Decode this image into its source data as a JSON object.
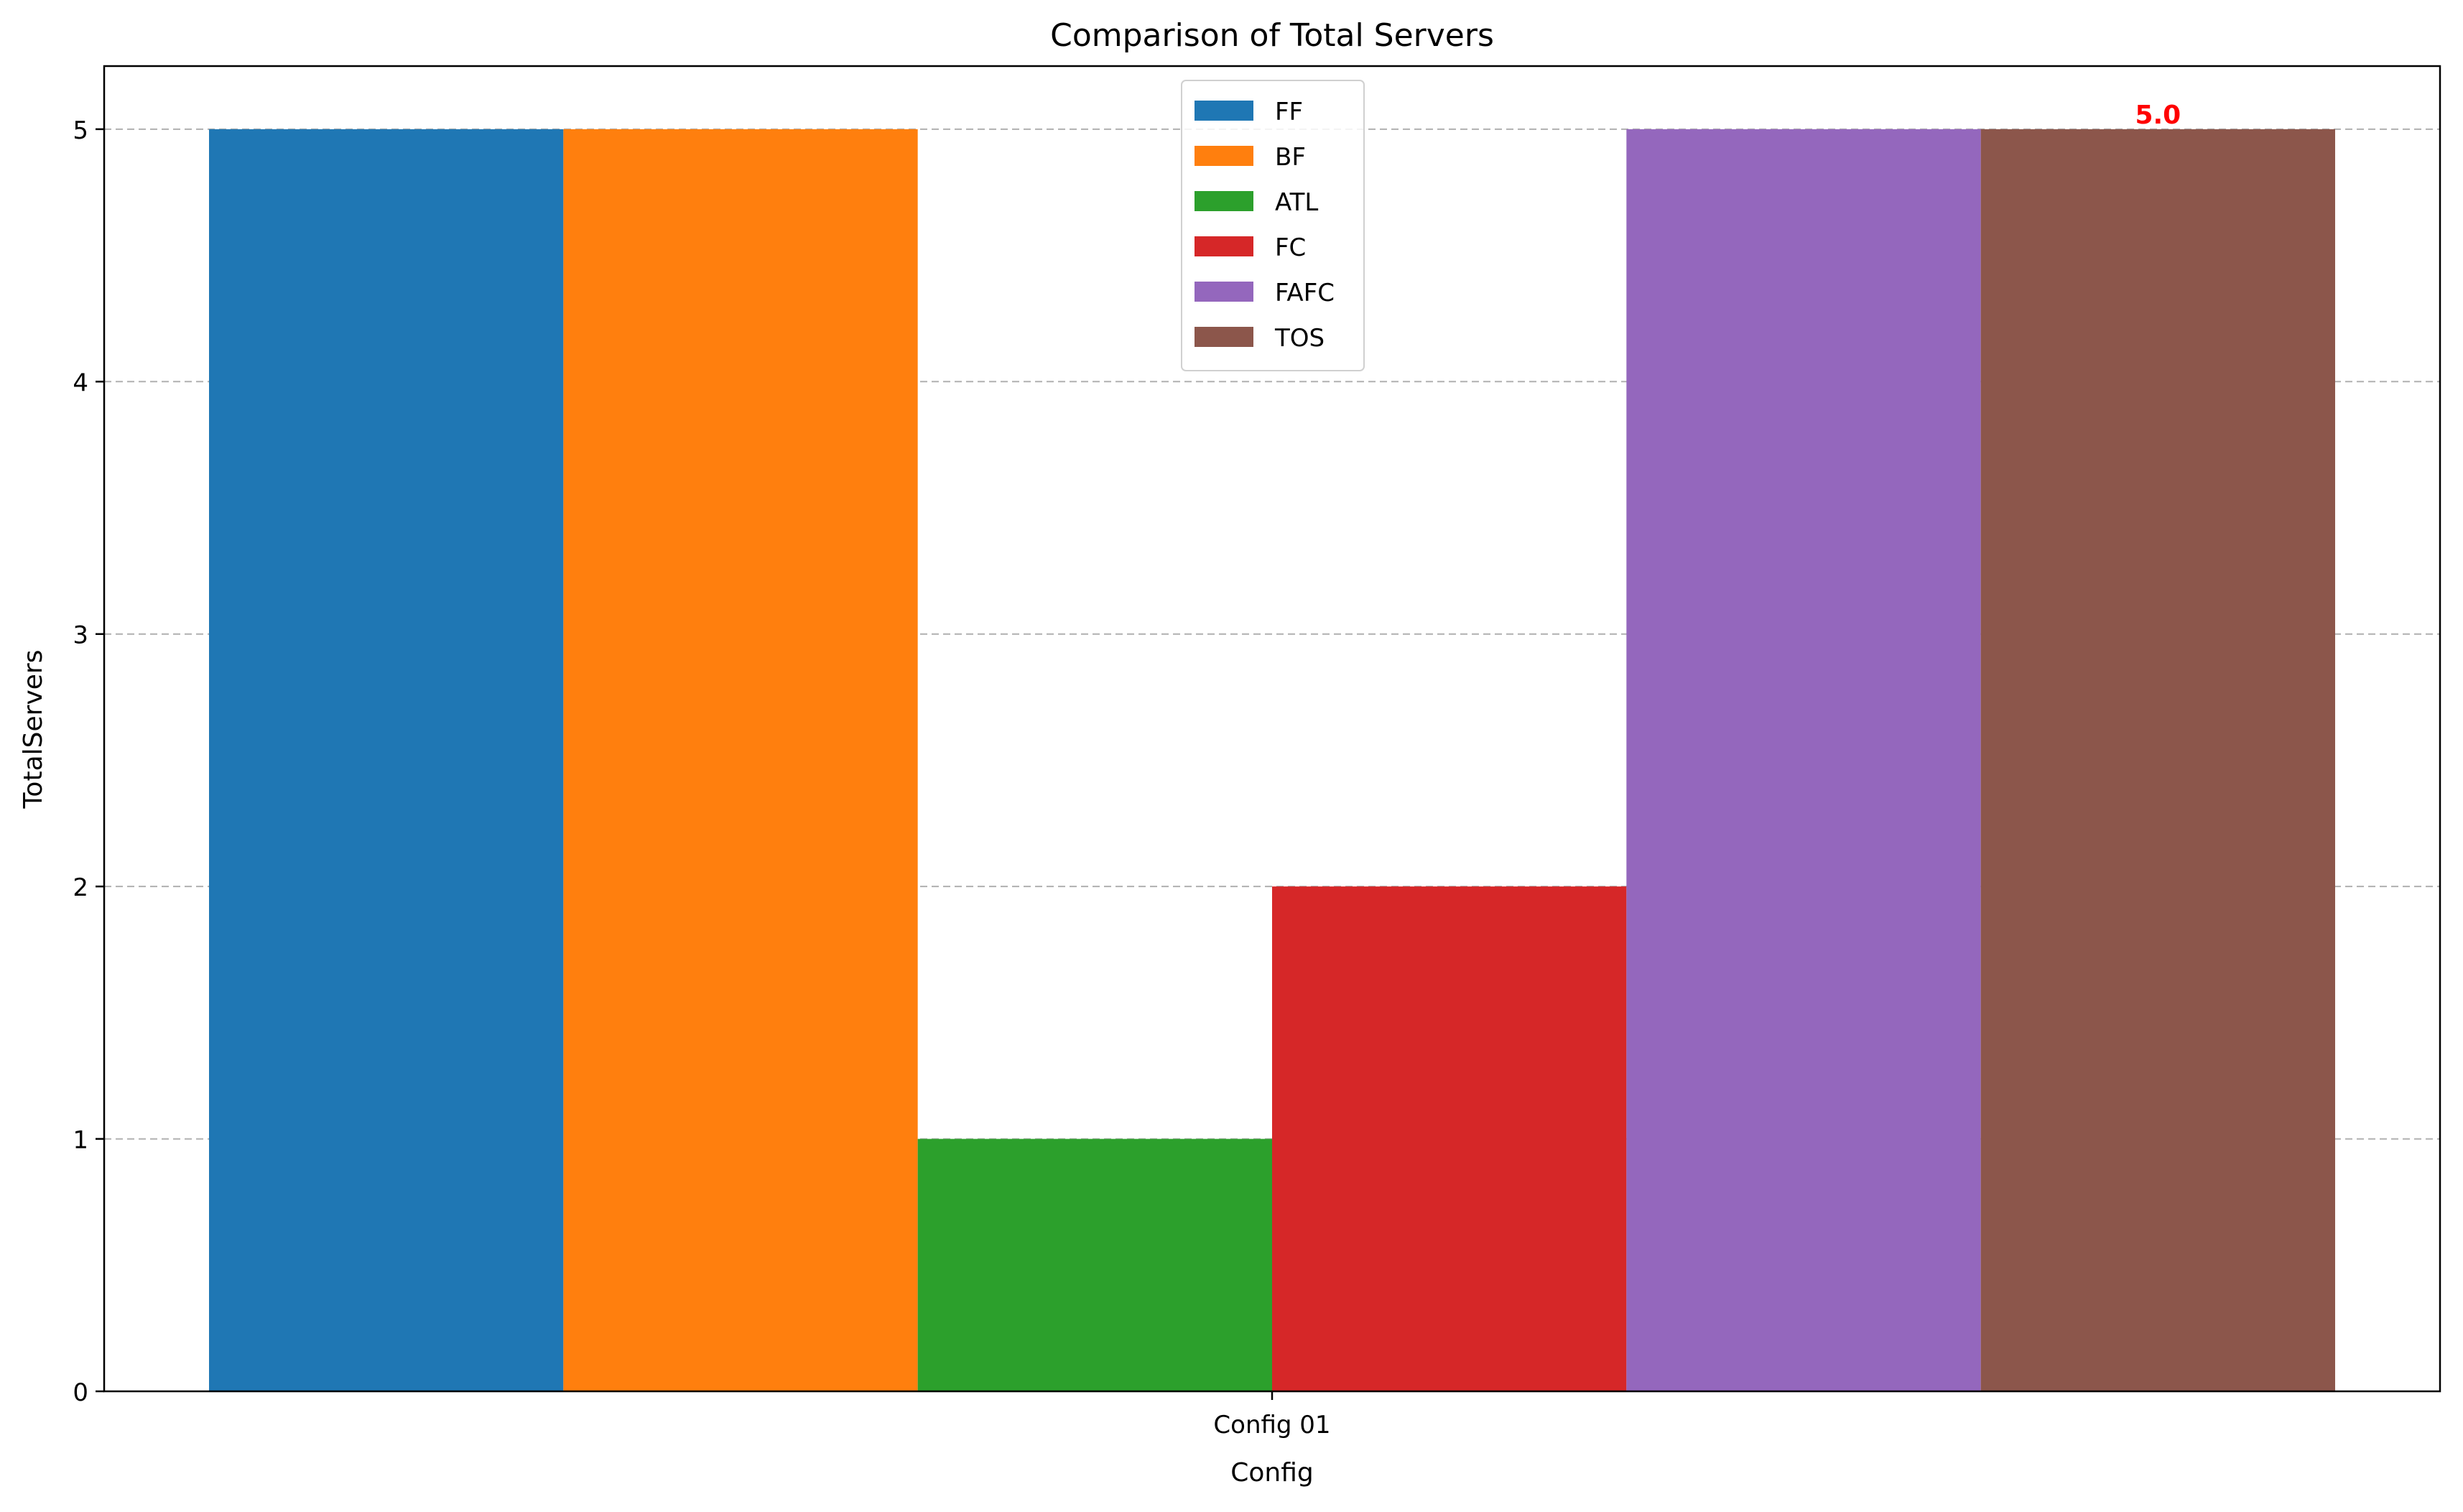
{
  "chart_data": {
    "type": "bar",
    "title": "Comparison of Total Servers",
    "xlabel": "Config",
    "ylabel": "TotalServers",
    "categories": [
      "Config 01"
    ],
    "series": [
      {
        "name": "FF",
        "values": [
          5
        ],
        "color": "#1f77b4"
      },
      {
        "name": "BF",
        "values": [
          5
        ],
        "color": "#ff7f0e"
      },
      {
        "name": "ATL",
        "values": [
          1
        ],
        "color": "#2ca02c"
      },
      {
        "name": "FC",
        "values": [
          2
        ],
        "color": "#d62728"
      },
      {
        "name": "FAFC",
        "values": [
          5
        ],
        "color": "#9467bd"
      },
      {
        "name": "TOS",
        "values": [
          5
        ],
        "color": "#8c564b"
      }
    ],
    "ylim": [
      0,
      5.25
    ],
    "yticks": [
      "0",
      "1",
      "2",
      "3",
      "4",
      "5"
    ],
    "grid": "y-dashed",
    "legend_position": "top-center",
    "annotations": [
      {
        "text": "5.0",
        "series": "TOS",
        "category": "Config 01",
        "color": "#ff0000"
      }
    ]
  }
}
